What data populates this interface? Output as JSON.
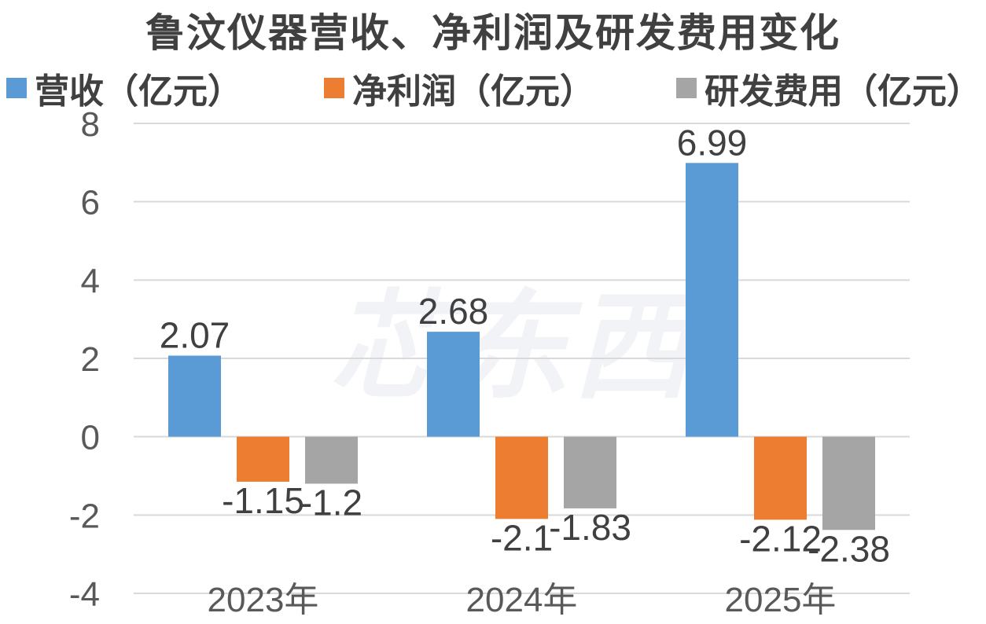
{
  "chart_data": {
    "type": "bar",
    "title": "鲁汶仪器营收、净利润及研发费用变化",
    "categories": [
      "2023年",
      "2024年",
      "2025年"
    ],
    "series": [
      {
        "name": "营收（亿元）",
        "color": "#5b9bd5",
        "values": [
          2.07,
          2.68,
          6.99
        ]
      },
      {
        "name": "净利润（亿元）",
        "color": "#ed7d31",
        "values": [
          -1.15,
          -2.1,
          -2.12
        ]
      },
      {
        "name": "研发费用（亿元）",
        "color": "#a5a5a5",
        "values": [
          -1.2,
          -1.83,
          -2.38
        ]
      }
    ],
    "data_labels": [
      [
        "2.07",
        "2.68",
        "6.99"
      ],
      [
        "-1.15",
        "-2.1",
        "-2.12"
      ],
      [
        "-1.2",
        "-1.83",
        "-2.38"
      ]
    ],
    "ylim": [
      -4,
      8
    ],
    "yticks": [
      "-4",
      "-2",
      "0",
      "2",
      "4",
      "6",
      "8"
    ],
    "grid": true,
    "legend_position": "top",
    "watermark": "芯东西"
  }
}
